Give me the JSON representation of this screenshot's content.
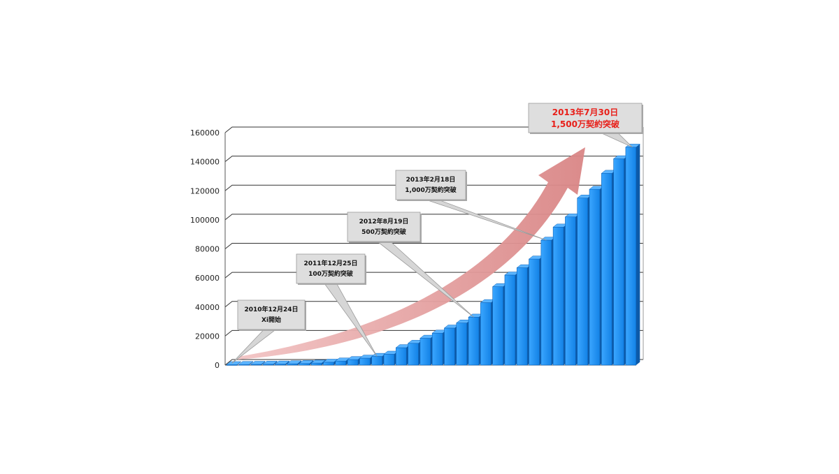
{
  "chart_data": {
    "type": "bar",
    "style": "3d-column",
    "ylim": [
      0,
      160000
    ],
    "yticks": [
      0,
      20000,
      40000,
      60000,
      80000,
      100000,
      120000,
      140000,
      160000
    ],
    "grid": true,
    "values": [
      300,
      400,
      500,
      600,
      700,
      900,
      1100,
      1400,
      2000,
      2800,
      3800,
      4800,
      6000,
      7500,
      12000,
      15000,
      18500,
      22000,
      25500,
      29000,
      33000,
      43000,
      54000,
      62000,
      67000,
      73000,
      86000,
      95000,
      102000,
      115000,
      121000,
      132000,
      142000,
      150000
    ],
    "annotations": [
      {
        "line1": "2010年12月24日",
        "line2": "Xi開始",
        "bar_index": 0
      },
      {
        "line1": "2011年12月25日",
        "line2": "100万契約突破",
        "bar_index": 12
      },
      {
        "line1": "2012年8月19日",
        "line2": "500万契約突破",
        "bar_index": 20
      },
      {
        "line1": "2013年2月18日",
        "line2": "1,000万契約突破",
        "bar_index": 26
      },
      {
        "line1": "2013年7月30日",
        "line2": "1,500万契約突破",
        "bar_index": 33,
        "highlight": true
      }
    ],
    "colors": {
      "bar_front": "#1a8ef0",
      "bar_top": "#5ab4ff",
      "bar_side": "#0d5aa8",
      "trend_arrow": "#d88a8a",
      "callout_fill": "#dedede",
      "highlight_text": "#e8201a"
    }
  }
}
